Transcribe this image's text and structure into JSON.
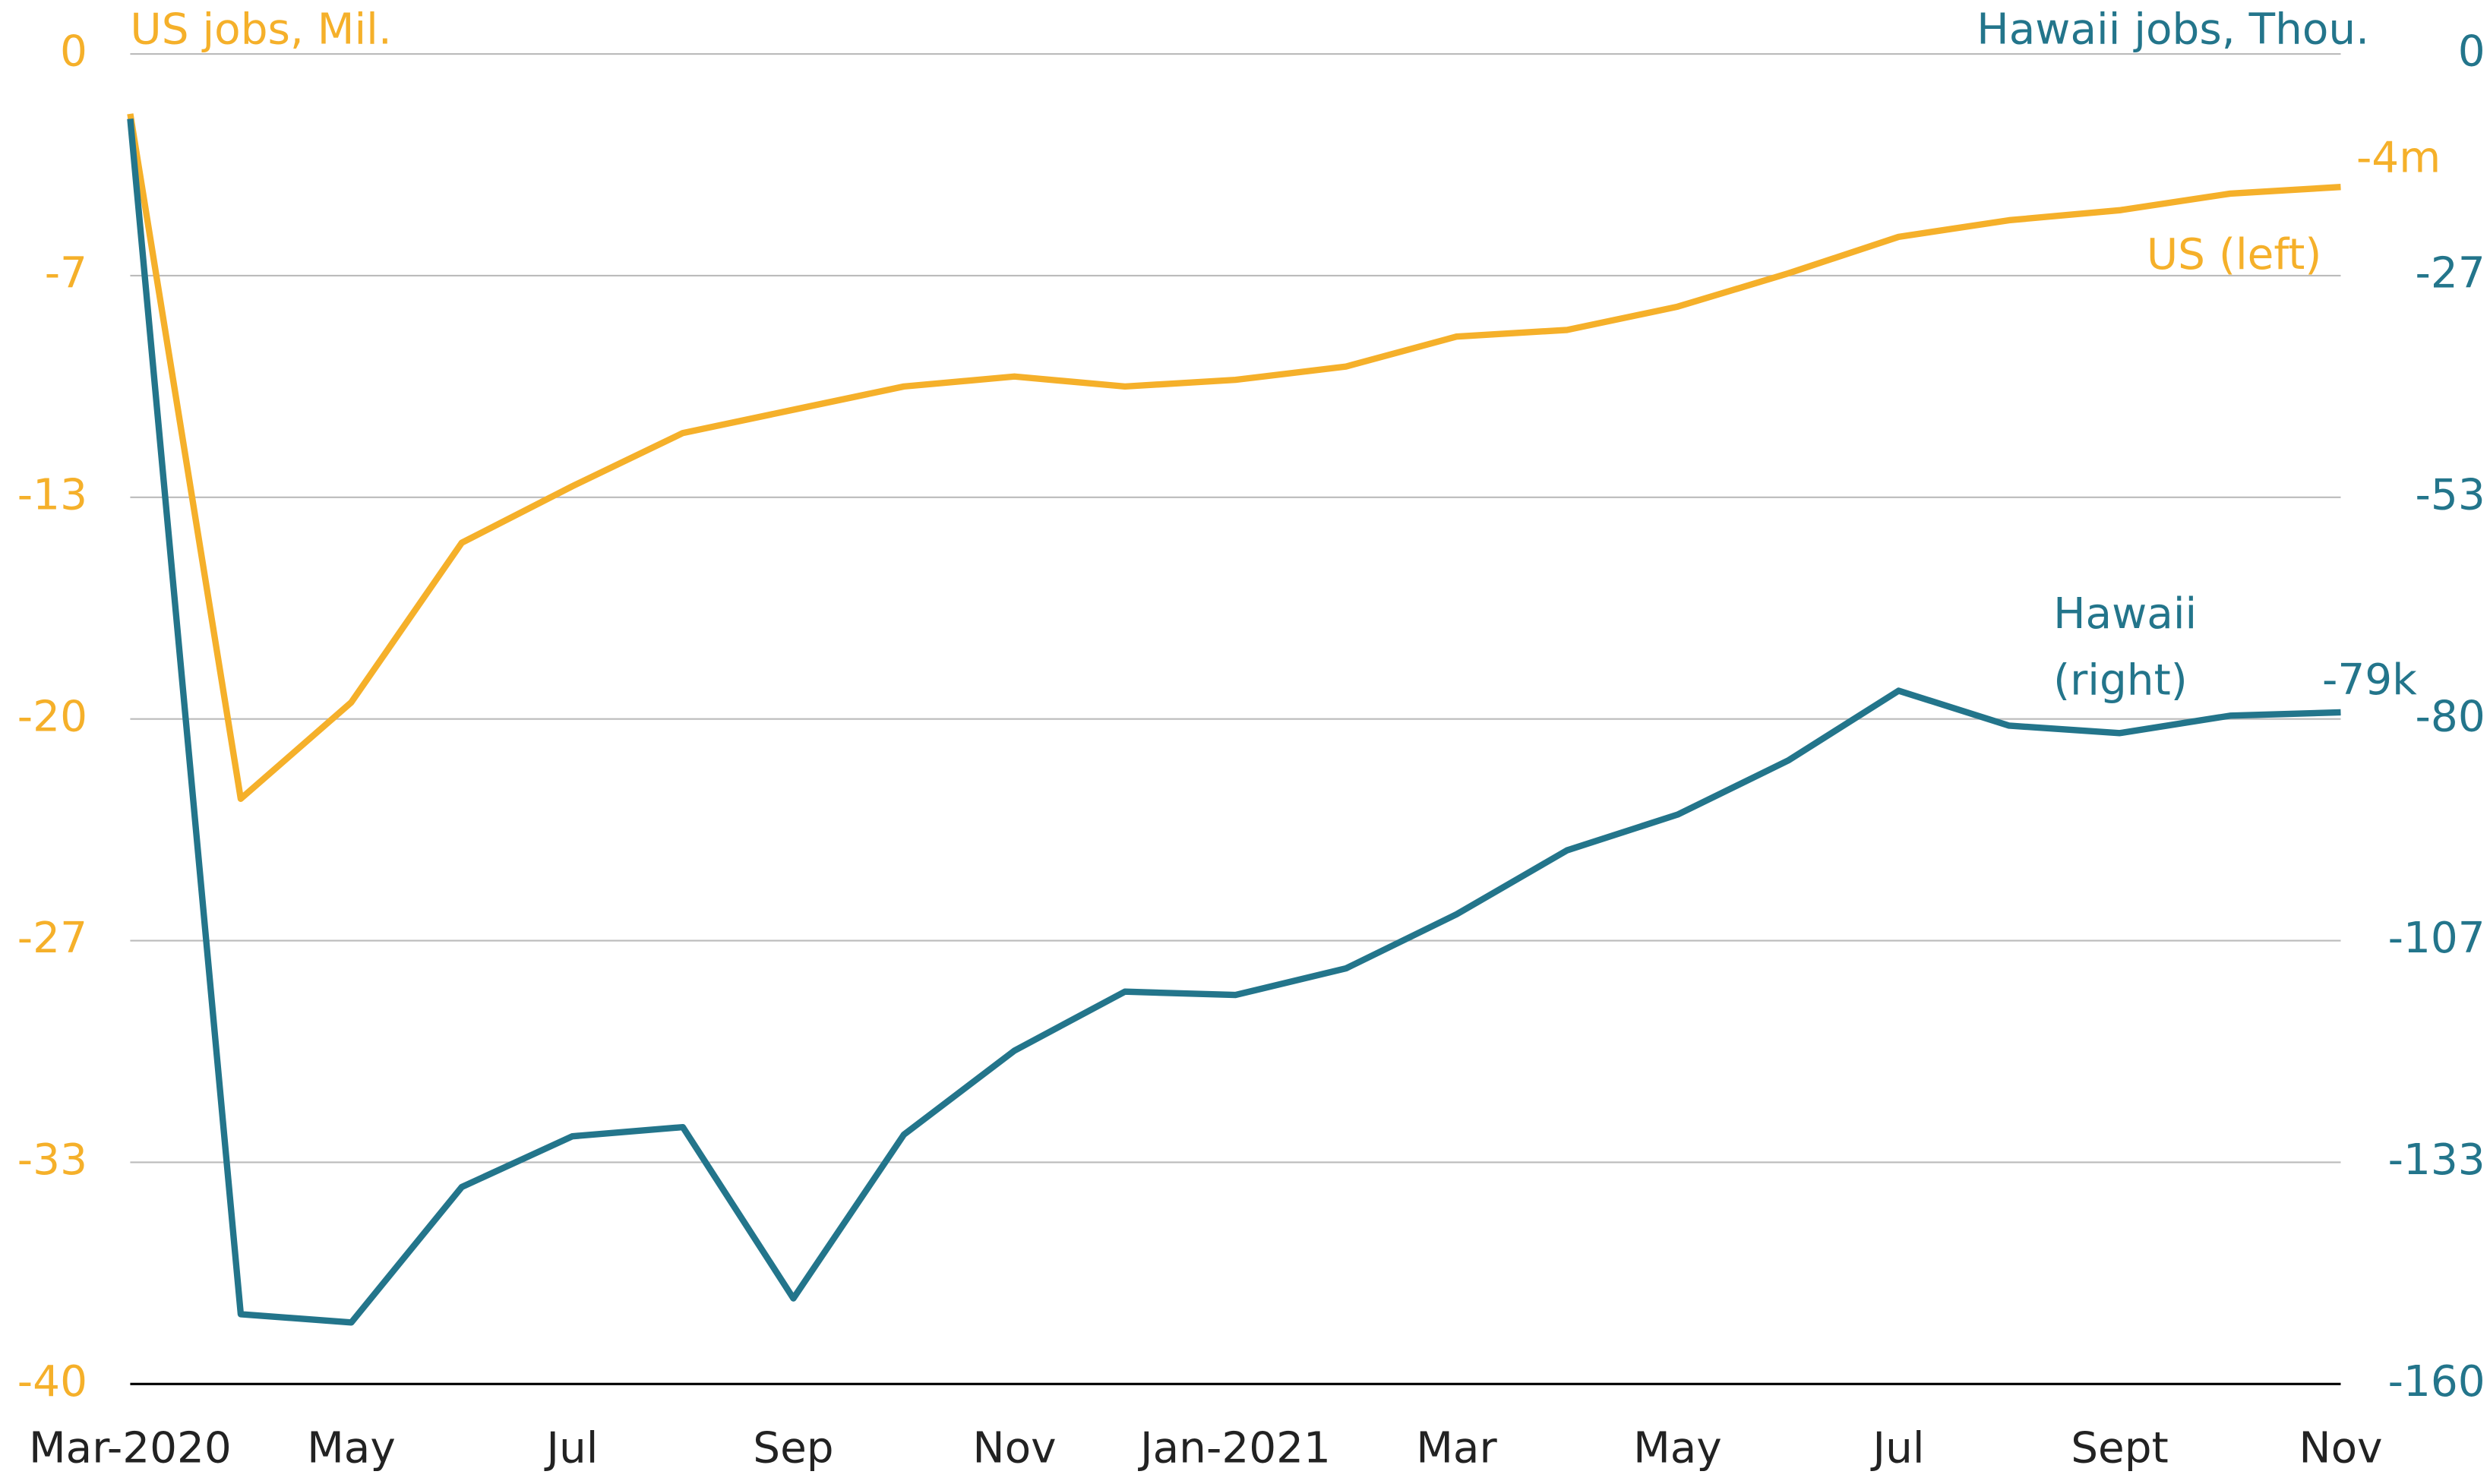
{
  "chart_data": {
    "type": "line",
    "categories": [
      "Mar-2020",
      null,
      "May",
      null,
      "Jul",
      null,
      "Sep",
      null,
      "Nov",
      null,
      "Jan-2021",
      null,
      "Mar",
      null,
      "May",
      null,
      "Jul",
      null,
      "Sept",
      null,
      "Nov"
    ],
    "series": [
      {
        "name": "US (left)",
        "color": "#f5b02a",
        "axis": "y",
        "values": [
          -1.8,
          -22.4,
          -19.5,
          -14.7,
          -13.0,
          -11.4,
          -10.7,
          -10.0,
          -9.7,
          -10.0,
          -9.8,
          -9.4,
          -8.5,
          -8.3,
          -7.6,
          -6.6,
          -5.5,
          -5.0,
          -4.7,
          -4.2,
          -4.0
        ]
      },
      {
        "name": "Hawaii (right)",
        "color": "#23758b",
        "axis": "y2",
        "values": [
          -7.8,
          -151.6,
          -152.6,
          -136.3,
          -130.2,
          -129.1,
          -149.7,
          -130.0,
          -119.9,
          -112.8,
          -113.2,
          -110.0,
          -103.5,
          -95.8,
          -91.5,
          -85.0,
          -76.6,
          -80.8,
          -81.7,
          -79.6,
          -79.2
        ]
      }
    ],
    "ylim": [
      -40,
      0
    ],
    "yticks": [
      0,
      {
        "value": -6.667,
        "label": "-7"
      },
      {
        "value": -13.333,
        "label": "-13"
      },
      -20,
      {
        "value": -26.667,
        "label": "-27"
      },
      {
        "value": -33.333,
        "label": "-33"
      },
      -40
    ],
    "y2lim": [
      -160,
      0
    ],
    "y2ticks": [
      0,
      {
        "value": -26.667,
        "label": "-27"
      },
      {
        "value": -53.333,
        "label": "-53"
      },
      -80,
      {
        "value": -106.667,
        "label": "-107"
      },
      {
        "value": -133.333,
        "label": "-133"
      },
      -160
    ],
    "y_label": "US jobs, Mil.",
    "y2_label": "Hawaii jobs, Thou.",
    "end_labels": [
      "-4m",
      "-79k"
    ],
    "grid": true
  }
}
